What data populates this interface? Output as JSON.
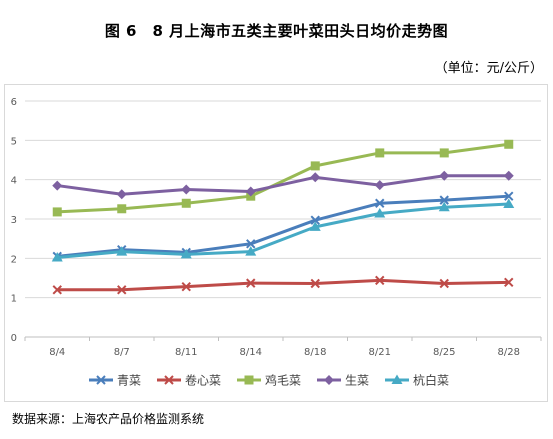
{
  "title": "图 6　8 月上海市五类主要叶菜田头日均价走势图",
  "unit": "（单位：元/公斤）",
  "source": "数据来源：上海农产品价格监测系统",
  "chart_data": {
    "type": "line",
    "x": [
      "8/4",
      "8/7",
      "8/11",
      "8/14",
      "8/18",
      "8/21",
      "8/25",
      "8/28"
    ],
    "ylim": [
      0,
      6
    ],
    "yticks": [
      "0",
      "1",
      "2",
      "3",
      "4",
      "5",
      "6"
    ],
    "grid": true,
    "legend": "bottom",
    "series": [
      {
        "name": "青菜",
        "color": "#4a7ebb",
        "marker": "x",
        "values": [
          2.05,
          2.22,
          2.15,
          2.37,
          2.97,
          3.4,
          3.48,
          3.58
        ]
      },
      {
        "name": "卷心菜",
        "color": "#be4b48",
        "marker": "x",
        "values": [
          1.2,
          1.2,
          1.28,
          1.37,
          1.36,
          1.44,
          1.36,
          1.39
        ]
      },
      {
        "name": "鸡毛菜",
        "color": "#98b954",
        "marker": "square",
        "values": [
          3.18,
          3.26,
          3.4,
          3.58,
          4.35,
          4.68,
          4.68,
          4.9
        ]
      },
      {
        "name": "生菜",
        "color": "#7d60a0",
        "marker": "diamond",
        "values": [
          3.85,
          3.63,
          3.75,
          3.7,
          4.06,
          3.86,
          4.1,
          4.1
        ]
      },
      {
        "name": "杭白菜",
        "color": "#46aac5",
        "marker": "triangle",
        "values": [
          2.02,
          2.17,
          2.1,
          2.17,
          2.8,
          3.14,
          3.3,
          3.38
        ]
      }
    ]
  }
}
